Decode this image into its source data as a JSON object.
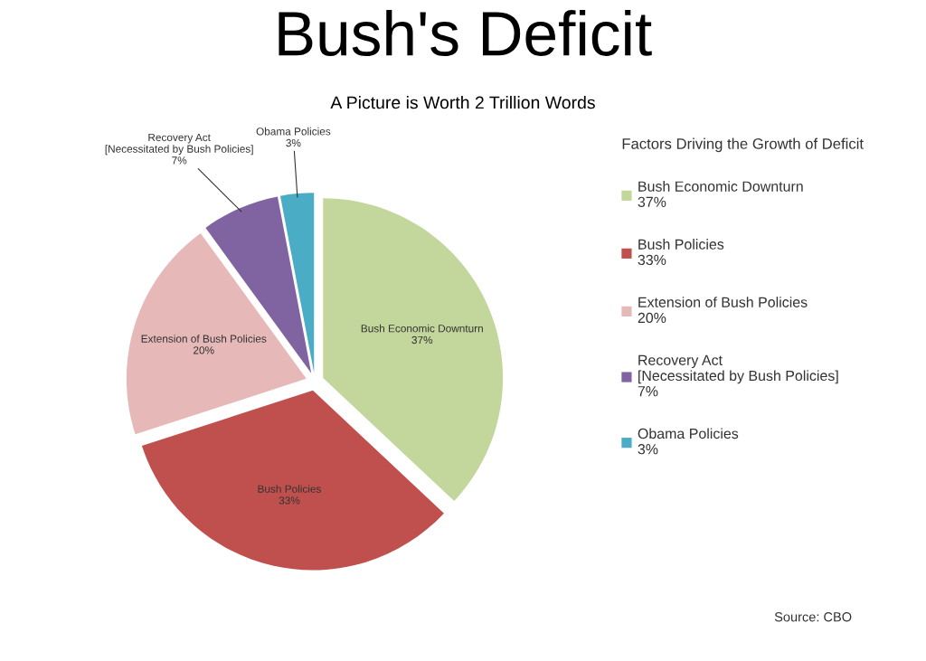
{
  "chart_data": {
    "type": "pie",
    "title": "Bush's Deficit",
    "subtitle": "A Picture is Worth 2 Trillion Words",
    "categories": [
      "Bush Economic Downturn",
      "Bush Policies",
      "Extension of Bush Policies",
      "Recovery Act\n[Necessitated by Bush Policies]",
      "Obama Policies"
    ],
    "values": [
      37,
      33,
      20,
      7,
      3
    ],
    "value_labels": [
      "37%",
      "33%",
      "20%",
      "7%",
      "3%"
    ],
    "colors": [
      "#c3d69b",
      "#c0504d",
      "#e6b9b8",
      "#8064a2",
      "#4bacc6"
    ],
    "legend": "right",
    "legend_title": "Factors Driving the Growth of Deficit",
    "annotations": [
      "Source: CBO"
    ]
  }
}
